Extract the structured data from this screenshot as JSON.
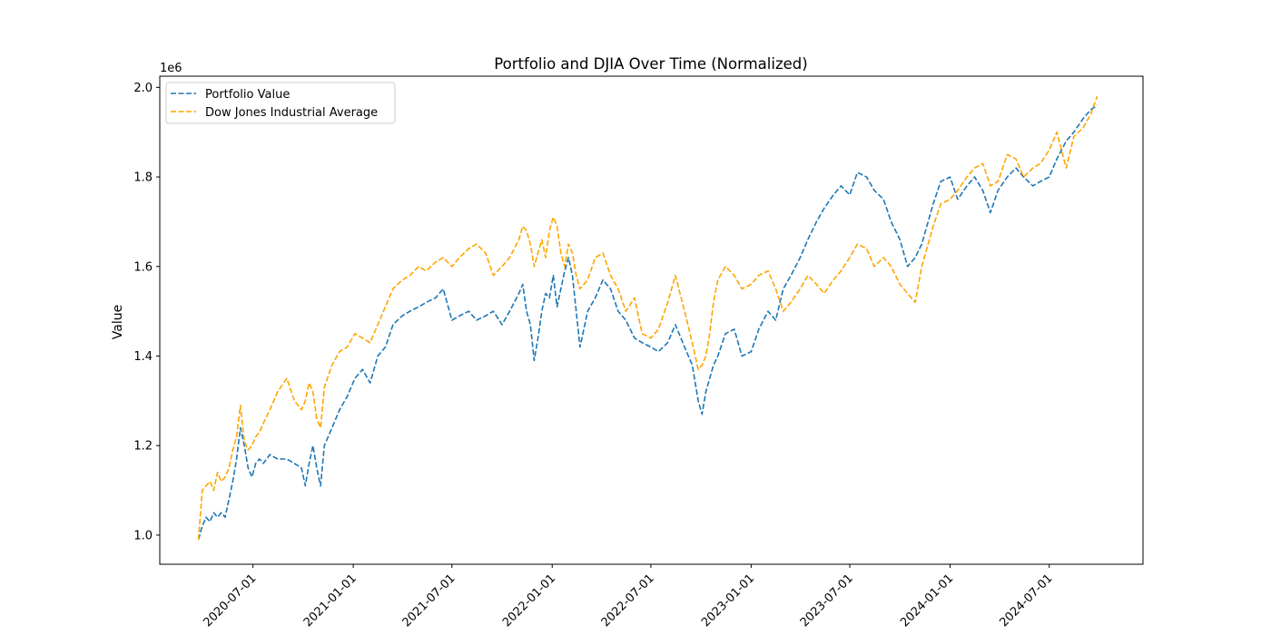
{
  "chart_data": {
    "type": "line",
    "title": "Portfolio and DJIA Over Time (Normalized)",
    "xlabel": "",
    "ylabel": "Value",
    "y_offset_text": "1e6",
    "x_tick_labels": [
      "2020-07-01",
      "2021-01-01",
      "2021-07-01",
      "2022-01-01",
      "2022-07-01",
      "2023-01-01",
      "2023-07-01",
      "2024-01-01",
      "2024-07-01"
    ],
    "y_ticks": [
      1.0,
      1.2,
      1.4,
      1.6,
      1.8,
      2.0
    ],
    "ylim": [
      0.935,
      2.025
    ],
    "xlim": [
      "2020-01-12",
      "2024-12-20"
    ],
    "grid": false,
    "legend_position": "upper-left",
    "line_style": "dashed",
    "series": [
      {
        "name": "Portfolio Value",
        "color": "#1f77b4",
        "points": [
          [
            "2020-03-23",
            0.99
          ],
          [
            "2020-03-30",
            1.02
          ],
          [
            "2020-04-06",
            1.04
          ],
          [
            "2020-04-13",
            1.03
          ],
          [
            "2020-04-20",
            1.05
          ],
          [
            "2020-04-27",
            1.04
          ],
          [
            "2020-05-04",
            1.05
          ],
          [
            "2020-05-11",
            1.04
          ],
          [
            "2020-05-18",
            1.08
          ],
          [
            "2020-05-25",
            1.12
          ],
          [
            "2020-06-01",
            1.17
          ],
          [
            "2020-06-08",
            1.24
          ],
          [
            "2020-06-15",
            1.2
          ],
          [
            "2020-06-22",
            1.15
          ],
          [
            "2020-06-29",
            1.13
          ],
          [
            "2020-07-06",
            1.16
          ],
          [
            "2020-07-13",
            1.17
          ],
          [
            "2020-07-20",
            1.16
          ],
          [
            "2020-08-01",
            1.18
          ],
          [
            "2020-08-15",
            1.17
          ],
          [
            "2020-09-01",
            1.17
          ],
          [
            "2020-09-15",
            1.16
          ],
          [
            "2020-09-28",
            1.15
          ],
          [
            "2020-10-05",
            1.11
          ],
          [
            "2020-10-12",
            1.16
          ],
          [
            "2020-10-19",
            1.2
          ],
          [
            "2020-10-26",
            1.15
          ],
          [
            "2020-11-02",
            1.11
          ],
          [
            "2020-11-09",
            1.2
          ],
          [
            "2020-11-23",
            1.24
          ],
          [
            "2020-12-07",
            1.28
          ],
          [
            "2020-12-21",
            1.31
          ],
          [
            "2021-01-04",
            1.35
          ],
          [
            "2021-01-18",
            1.37
          ],
          [
            "2021-02-01",
            1.34
          ],
          [
            "2021-02-15",
            1.4
          ],
          [
            "2021-03-01",
            1.42
          ],
          [
            "2021-03-15",
            1.47
          ],
          [
            "2021-04-01",
            1.49
          ],
          [
            "2021-04-15",
            1.5
          ],
          [
            "2021-05-01",
            1.51
          ],
          [
            "2021-05-15",
            1.52
          ],
          [
            "2021-06-01",
            1.53
          ],
          [
            "2021-06-15",
            1.55
          ],
          [
            "2021-07-01",
            1.48
          ],
          [
            "2021-07-15",
            1.49
          ],
          [
            "2021-08-01",
            1.5
          ],
          [
            "2021-08-15",
            1.48
          ],
          [
            "2021-09-01",
            1.49
          ],
          [
            "2021-09-15",
            1.5
          ],
          [
            "2021-10-01",
            1.47
          ],
          [
            "2021-10-15",
            1.5
          ],
          [
            "2021-11-01",
            1.54
          ],
          [
            "2021-11-08",
            1.56
          ],
          [
            "2021-11-15",
            1.5
          ],
          [
            "2021-11-22",
            1.47
          ],
          [
            "2021-11-29",
            1.39
          ],
          [
            "2021-12-06",
            1.44
          ],
          [
            "2021-12-13",
            1.5
          ],
          [
            "2021-12-20",
            1.54
          ],
          [
            "2021-12-27",
            1.53
          ],
          [
            "2022-01-03",
            1.58
          ],
          [
            "2022-01-10",
            1.51
          ],
          [
            "2022-01-17",
            1.55
          ],
          [
            "2022-01-24",
            1.59
          ],
          [
            "2022-01-31",
            1.62
          ],
          [
            "2022-02-07",
            1.58
          ],
          [
            "2022-02-14",
            1.5
          ],
          [
            "2022-02-21",
            1.42
          ],
          [
            "2022-03-07",
            1.5
          ],
          [
            "2022-03-21",
            1.53
          ],
          [
            "2022-04-04",
            1.57
          ],
          [
            "2022-04-18",
            1.55
          ],
          [
            "2022-05-02",
            1.5
          ],
          [
            "2022-05-16",
            1.48
          ],
          [
            "2022-06-01",
            1.44
          ],
          [
            "2022-06-15",
            1.43
          ],
          [
            "2022-07-01",
            1.42
          ],
          [
            "2022-07-15",
            1.41
          ],
          [
            "2022-08-01",
            1.43
          ],
          [
            "2022-08-15",
            1.47
          ],
          [
            "2022-09-01",
            1.42
          ],
          [
            "2022-09-15",
            1.38
          ],
          [
            "2022-09-26",
            1.3
          ],
          [
            "2022-10-03",
            1.27
          ],
          [
            "2022-10-10",
            1.32
          ],
          [
            "2022-10-17",
            1.35
          ],
          [
            "2022-10-24",
            1.38
          ],
          [
            "2022-11-01",
            1.4
          ],
          [
            "2022-11-15",
            1.45
          ],
          [
            "2022-12-01",
            1.46
          ],
          [
            "2022-12-15",
            1.4
          ],
          [
            "2023-01-01",
            1.41
          ],
          [
            "2023-01-15",
            1.46
          ],
          [
            "2023-02-01",
            1.5
          ],
          [
            "2023-02-15",
            1.48
          ],
          [
            "2023-03-01",
            1.55
          ],
          [
            "2023-03-15",
            1.58
          ],
          [
            "2023-04-01",
            1.62
          ],
          [
            "2023-04-15",
            1.66
          ],
          [
            "2023-05-01",
            1.7
          ],
          [
            "2023-05-15",
            1.73
          ],
          [
            "2023-06-01",
            1.76
          ],
          [
            "2023-06-15",
            1.78
          ],
          [
            "2023-07-01",
            1.76
          ],
          [
            "2023-07-15",
            1.81
          ],
          [
            "2023-08-01",
            1.8
          ],
          [
            "2023-08-15",
            1.77
          ],
          [
            "2023-09-01",
            1.75
          ],
          [
            "2023-09-15",
            1.7
          ],
          [
            "2023-10-01",
            1.66
          ],
          [
            "2023-10-15",
            1.6
          ],
          [
            "2023-10-29",
            1.62
          ],
          [
            "2023-11-10",
            1.65
          ],
          [
            "2023-12-01",
            1.74
          ],
          [
            "2023-12-15",
            1.79
          ],
          [
            "2024-01-01",
            1.8
          ],
          [
            "2024-01-15",
            1.75
          ],
          [
            "2024-02-01",
            1.78
          ],
          [
            "2024-02-15",
            1.8
          ],
          [
            "2024-03-01",
            1.77
          ],
          [
            "2024-03-15",
            1.72
          ],
          [
            "2024-03-29",
            1.77
          ],
          [
            "2024-04-15",
            1.8
          ],
          [
            "2024-05-01",
            1.82
          ],
          [
            "2024-05-15",
            1.8
          ],
          [
            "2024-06-01",
            1.78
          ],
          [
            "2024-06-15",
            1.79
          ],
          [
            "2024-07-01",
            1.8
          ],
          [
            "2024-07-15",
            1.84
          ],
          [
            "2024-08-01",
            1.88
          ],
          [
            "2024-08-15",
            1.9
          ],
          [
            "2024-09-01",
            1.93
          ],
          [
            "2024-09-15",
            1.95
          ],
          [
            "2024-09-27",
            1.96
          ]
        ]
      },
      {
        "name": "Dow Jones Industrial Average",
        "color": "#ffa500",
        "points": [
          [
            "2020-03-23",
            0.99
          ],
          [
            "2020-03-30",
            1.1
          ],
          [
            "2020-04-06",
            1.11
          ],
          [
            "2020-04-13",
            1.12
          ],
          [
            "2020-04-20",
            1.1
          ],
          [
            "2020-04-27",
            1.14
          ],
          [
            "2020-05-04",
            1.12
          ],
          [
            "2020-05-11",
            1.13
          ],
          [
            "2020-05-18",
            1.15
          ],
          [
            "2020-05-25",
            1.19
          ],
          [
            "2020-06-01",
            1.22
          ],
          [
            "2020-06-08",
            1.29
          ],
          [
            "2020-06-15",
            1.21
          ],
          [
            "2020-06-22",
            1.19
          ],
          [
            "2020-06-29",
            1.2
          ],
          [
            "2020-07-06",
            1.22
          ],
          [
            "2020-07-13",
            1.23
          ],
          [
            "2020-07-20",
            1.25
          ],
          [
            "2020-08-01",
            1.28
          ],
          [
            "2020-08-15",
            1.32
          ],
          [
            "2020-09-01",
            1.35
          ],
          [
            "2020-09-15",
            1.3
          ],
          [
            "2020-09-28",
            1.28
          ],
          [
            "2020-10-05",
            1.3
          ],
          [
            "2020-10-12",
            1.34
          ],
          [
            "2020-10-19",
            1.32
          ],
          [
            "2020-10-26",
            1.26
          ],
          [
            "2020-11-02",
            1.24
          ],
          [
            "2020-11-09",
            1.33
          ],
          [
            "2020-11-23",
            1.38
          ],
          [
            "2020-12-07",
            1.41
          ],
          [
            "2020-12-21",
            1.42
          ],
          [
            "2021-01-04",
            1.45
          ],
          [
            "2021-01-18",
            1.44
          ],
          [
            "2021-02-01",
            1.43
          ],
          [
            "2021-02-15",
            1.47
          ],
          [
            "2021-03-01",
            1.51
          ],
          [
            "2021-03-15",
            1.55
          ],
          [
            "2021-04-01",
            1.57
          ],
          [
            "2021-04-15",
            1.58
          ],
          [
            "2021-05-01",
            1.6
          ],
          [
            "2021-05-15",
            1.59
          ],
          [
            "2021-06-01",
            1.61
          ],
          [
            "2021-06-15",
            1.62
          ],
          [
            "2021-07-01",
            1.6
          ],
          [
            "2021-07-15",
            1.62
          ],
          [
            "2021-08-01",
            1.64
          ],
          [
            "2021-08-15",
            1.65
          ],
          [
            "2021-09-01",
            1.63
          ],
          [
            "2021-09-15",
            1.58
          ],
          [
            "2021-10-01",
            1.6
          ],
          [
            "2021-10-15",
            1.62
          ],
          [
            "2021-11-01",
            1.66
          ],
          [
            "2021-11-08",
            1.69
          ],
          [
            "2021-11-15",
            1.68
          ],
          [
            "2021-11-22",
            1.65
          ],
          [
            "2021-11-29",
            1.6
          ],
          [
            "2021-12-06",
            1.63
          ],
          [
            "2021-12-13",
            1.66
          ],
          [
            "2021-12-20",
            1.62
          ],
          [
            "2021-12-27",
            1.68
          ],
          [
            "2022-01-03",
            1.71
          ],
          [
            "2022-01-10",
            1.69
          ],
          [
            "2022-01-17",
            1.63
          ],
          [
            "2022-01-24",
            1.6
          ],
          [
            "2022-01-31",
            1.65
          ],
          [
            "2022-02-07",
            1.63
          ],
          [
            "2022-02-14",
            1.58
          ],
          [
            "2022-02-21",
            1.55
          ],
          [
            "2022-03-07",
            1.57
          ],
          [
            "2022-03-21",
            1.62
          ],
          [
            "2022-04-04",
            1.63
          ],
          [
            "2022-04-18",
            1.58
          ],
          [
            "2022-05-02",
            1.55
          ],
          [
            "2022-05-16",
            1.5
          ],
          [
            "2022-06-01",
            1.53
          ],
          [
            "2022-06-15",
            1.45
          ],
          [
            "2022-07-01",
            1.44
          ],
          [
            "2022-07-15",
            1.46
          ],
          [
            "2022-08-01",
            1.52
          ],
          [
            "2022-08-15",
            1.58
          ],
          [
            "2022-09-01",
            1.5
          ],
          [
            "2022-09-15",
            1.43
          ],
          [
            "2022-09-26",
            1.37
          ],
          [
            "2022-10-03",
            1.38
          ],
          [
            "2022-10-10",
            1.4
          ],
          [
            "2022-10-17",
            1.45
          ],
          [
            "2022-10-24",
            1.52
          ],
          [
            "2022-11-01",
            1.57
          ],
          [
            "2022-11-15",
            1.6
          ],
          [
            "2022-12-01",
            1.58
          ],
          [
            "2022-12-15",
            1.55
          ],
          [
            "2023-01-01",
            1.56
          ],
          [
            "2023-01-15",
            1.58
          ],
          [
            "2023-02-01",
            1.59
          ],
          [
            "2023-02-15",
            1.55
          ],
          [
            "2023-03-01",
            1.5
          ],
          [
            "2023-03-15",
            1.52
          ],
          [
            "2023-04-01",
            1.55
          ],
          [
            "2023-04-15",
            1.58
          ],
          [
            "2023-05-01",
            1.56
          ],
          [
            "2023-05-15",
            1.54
          ],
          [
            "2023-06-01",
            1.57
          ],
          [
            "2023-06-15",
            1.59
          ],
          [
            "2023-07-01",
            1.62
          ],
          [
            "2023-07-15",
            1.65
          ],
          [
            "2023-08-01",
            1.64
          ],
          [
            "2023-08-15",
            1.6
          ],
          [
            "2023-09-01",
            1.62
          ],
          [
            "2023-09-15",
            1.6
          ],
          [
            "2023-10-01",
            1.56
          ],
          [
            "2023-10-15",
            1.54
          ],
          [
            "2023-10-29",
            1.52
          ],
          [
            "2023-11-10",
            1.6
          ],
          [
            "2023-12-01",
            1.69
          ],
          [
            "2023-12-15",
            1.74
          ],
          [
            "2024-01-01",
            1.75
          ],
          [
            "2024-01-15",
            1.77
          ],
          [
            "2024-02-01",
            1.8
          ],
          [
            "2024-02-15",
            1.82
          ],
          [
            "2024-03-01",
            1.83
          ],
          [
            "2024-03-15",
            1.78
          ],
          [
            "2024-03-29",
            1.79
          ],
          [
            "2024-04-15",
            1.85
          ],
          [
            "2024-05-01",
            1.84
          ],
          [
            "2024-05-15",
            1.8
          ],
          [
            "2024-06-01",
            1.82
          ],
          [
            "2024-06-15",
            1.83
          ],
          [
            "2024-07-01",
            1.86
          ],
          [
            "2024-07-15",
            1.9
          ],
          [
            "2024-08-01",
            1.82
          ],
          [
            "2024-08-15",
            1.89
          ],
          [
            "2024-09-01",
            1.91
          ],
          [
            "2024-09-15",
            1.94
          ],
          [
            "2024-09-27",
            1.98
          ]
        ]
      }
    ]
  }
}
